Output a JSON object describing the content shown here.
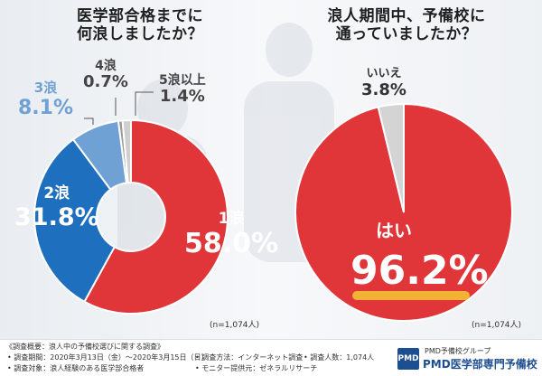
{
  "chart_data": [
    {
      "type": "pie",
      "title": "医学部合格までに何浪しましたか？",
      "title_lines": [
        "医学部合格までに",
        "何浪しましたか？"
      ],
      "note": "(n=1,074人)",
      "slices": [
        {
          "label": "1浪",
          "value": 58.0,
          "display": "58.0%",
          "color": "#e0363a"
        },
        {
          "label": "2浪",
          "value": 31.8,
          "display": "31.8%",
          "color": "#1f6fbf"
        },
        {
          "label": "3浪",
          "value": 8.1,
          "display": "8.1%",
          "color": "#6fa1d4"
        },
        {
          "label": "4浪",
          "value": 0.7,
          "display": "0.7%",
          "color": "#9a9a9a"
        },
        {
          "label": "5浪以上",
          "value": 1.4,
          "display": "1.4%",
          "color": "#cfcfcf"
        }
      ]
    },
    {
      "type": "pie",
      "title": "浪人期間中、予備校に通っていましたか？",
      "title_lines": [
        "浪人期間中、予備校に",
        "通っていましたか？"
      ],
      "note": "(n=1,074人)",
      "slices": [
        {
          "label": "はい",
          "value": 96.2,
          "display": "96.2%",
          "color": "#e0363a"
        },
        {
          "label": "いいえ",
          "value": 3.8,
          "display": "3.8%",
          "color": "#d4d4d4"
        }
      ]
    }
  ],
  "footer": {
    "overview": "《調査概要：浪人中の予備校選びに関する調査》",
    "period": "• 調査期間：2020年3月13日（金）〜2020年3月15日（日）",
    "method": "• 調査方法：インターネット調査",
    "count": "• 調査人数：1,074人",
    "target": "• 調査対象：浪人経験のある医学部合格者",
    "monitor": "• モニター提供元：ゼネラルリサーチ",
    "brand_group": "PMD予備校グループ",
    "brand_name": "PMD医学部専門予備校",
    "logo_text": "PMD"
  }
}
